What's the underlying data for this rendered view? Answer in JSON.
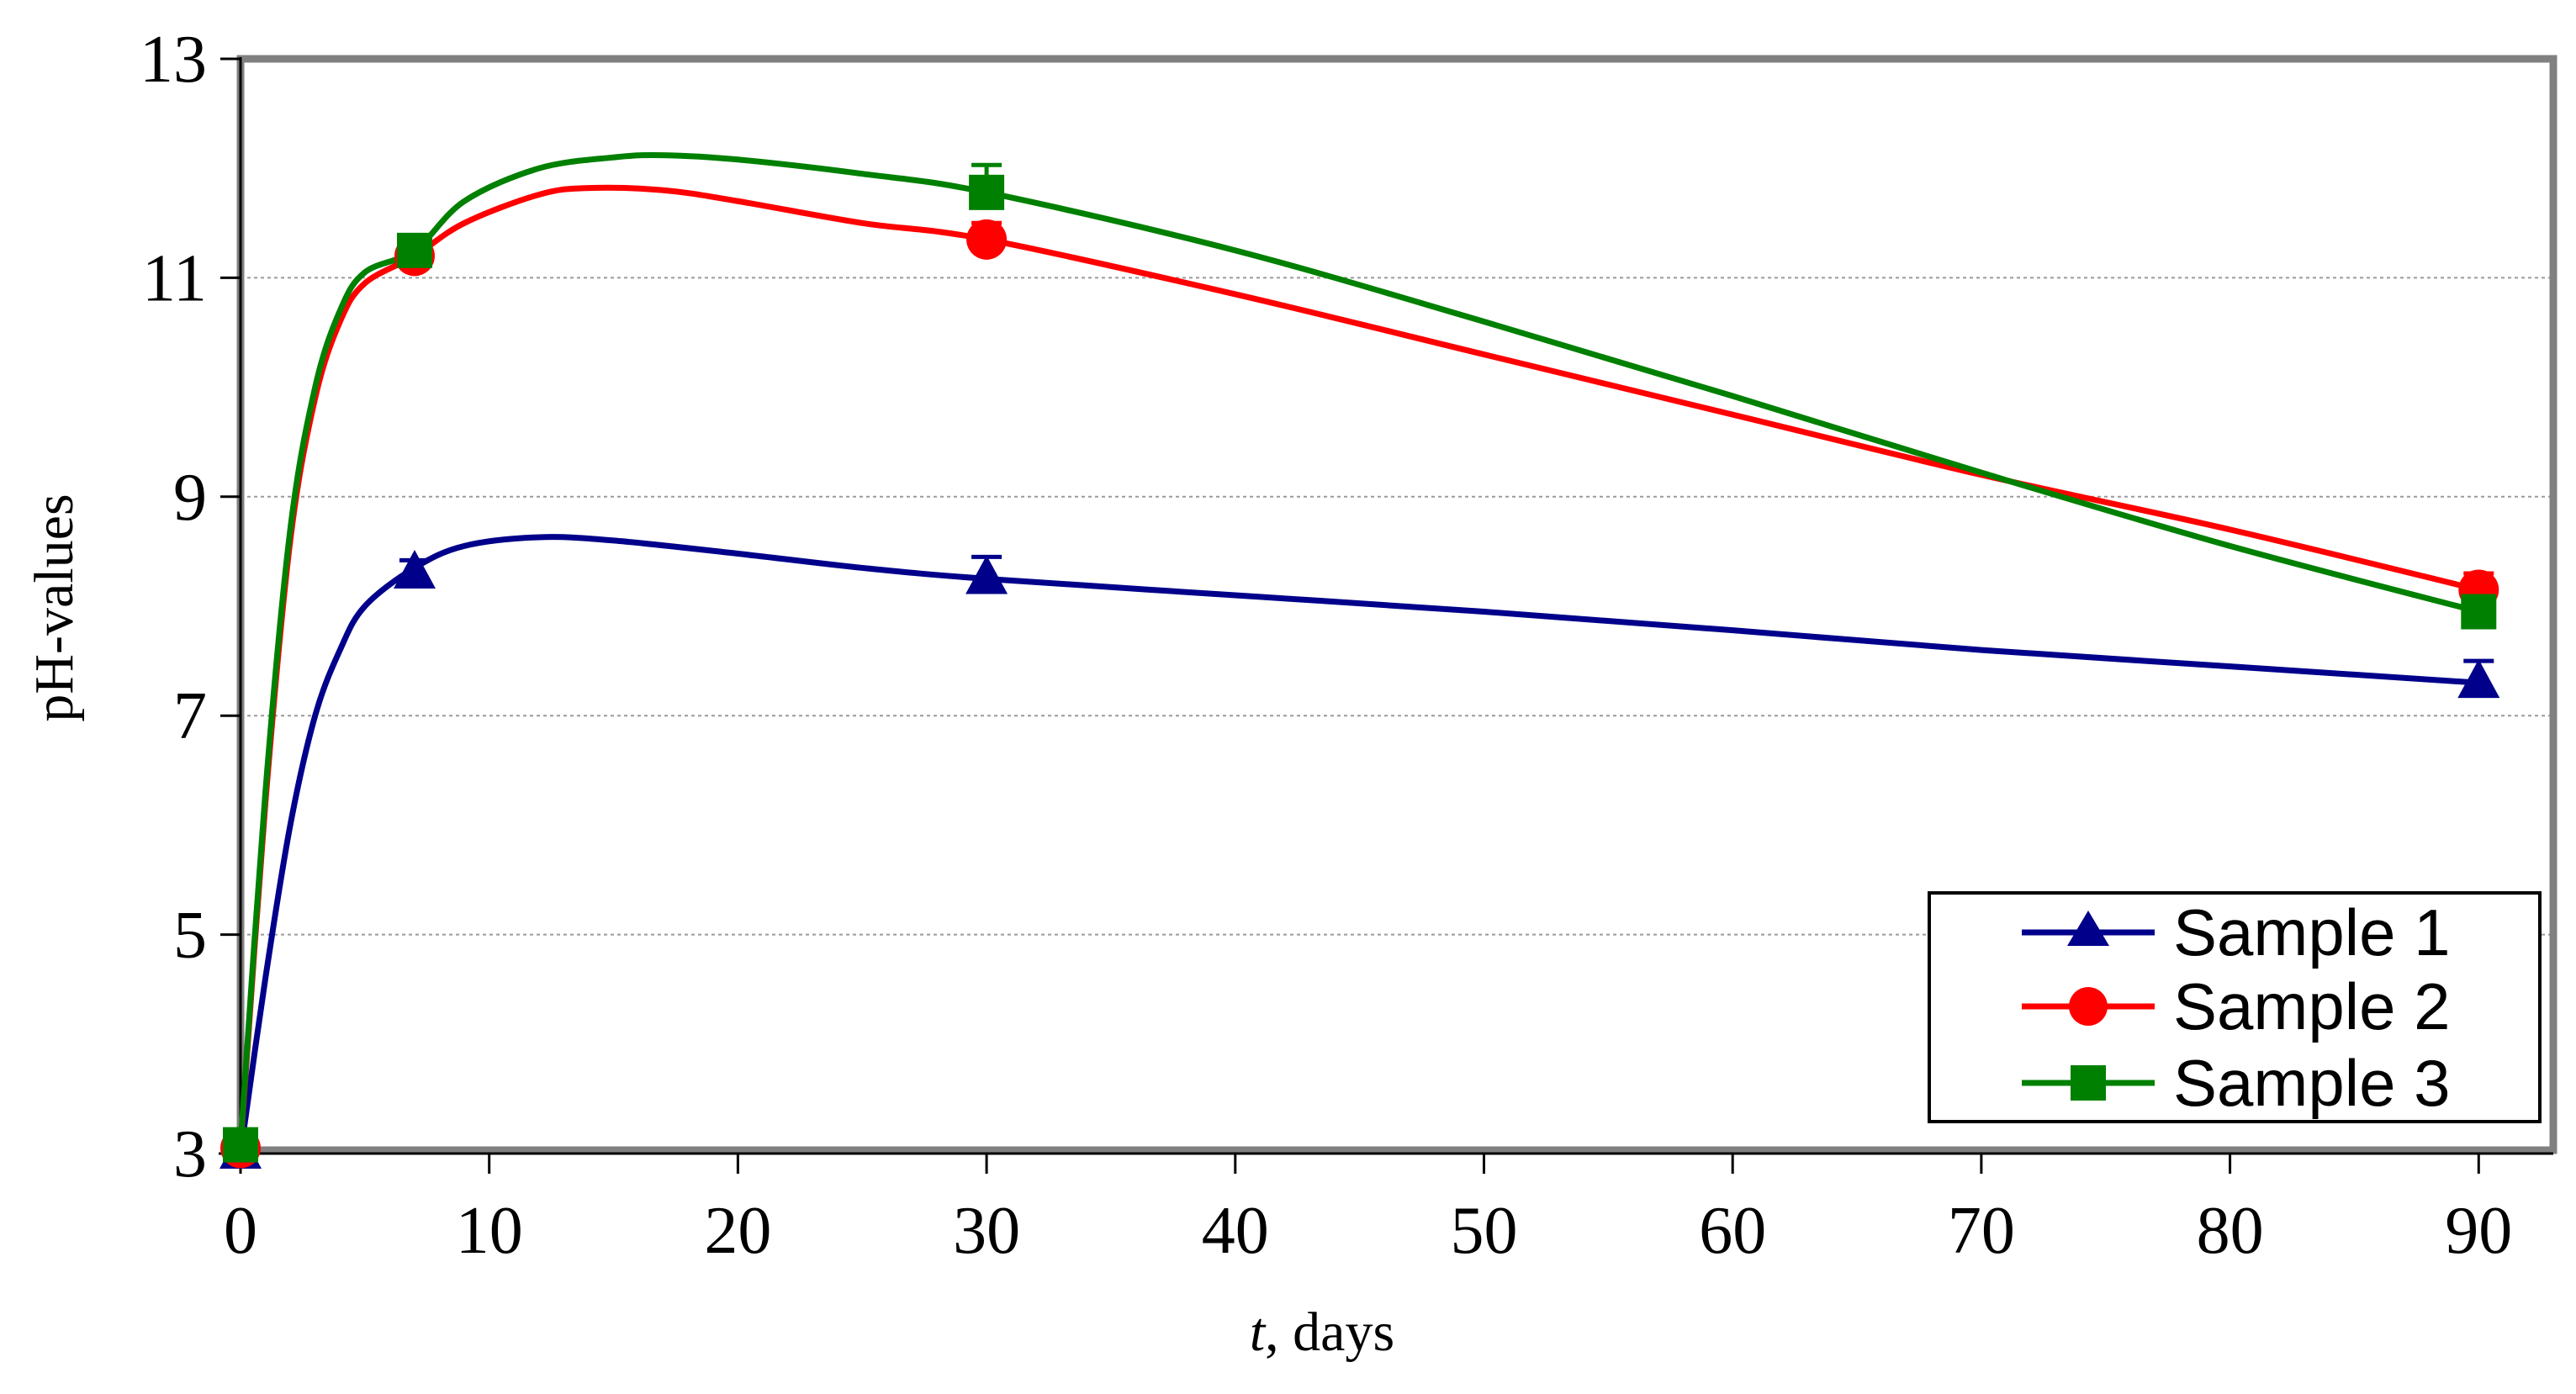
{
  "chart_data": {
    "type": "line",
    "title": "",
    "xlabel": {
      "italic": "t",
      "rest": ", days"
    },
    "ylabel": "pH-values",
    "xlim": [
      0,
      93
    ],
    "ylim": [
      3,
      13
    ],
    "xticks": [
      0,
      10,
      20,
      30,
      40,
      50,
      60,
      70,
      80,
      90
    ],
    "yticks": [
      3,
      5,
      7,
      9,
      11,
      13
    ],
    "grid": "horizontal dotted",
    "legend_position": "bottom-right",
    "x": [
      0,
      7,
      30,
      90
    ],
    "series": [
      {
        "name": "Sample 1",
        "marker": "triangle",
        "color": "#00008B",
        "values": [
          3.0,
          8.3,
          8.25,
          7.3
        ],
        "errors": [
          0.05,
          0.12,
          0.2,
          0.2
        ],
        "curve": [
          [
            0,
            3.0
          ],
          [
            1,
            4.6
          ],
          [
            2,
            6.0
          ],
          [
            3,
            7.0
          ],
          [
            4,
            7.6
          ],
          [
            5,
            8.0
          ],
          [
            7,
            8.35
          ],
          [
            9,
            8.55
          ],
          [
            12,
            8.63
          ],
          [
            15,
            8.6
          ],
          [
            20,
            8.48
          ],
          [
            25,
            8.35
          ],
          [
            30,
            8.25
          ],
          [
            40,
            8.1
          ],
          [
            50,
            7.95
          ],
          [
            60,
            7.78
          ],
          [
            70,
            7.6
          ],
          [
            80,
            7.45
          ],
          [
            90,
            7.3
          ]
        ]
      },
      {
        "name": "Sample 2",
        "marker": "circle",
        "color": "#FF0000",
        "values": [
          3.05,
          11.2,
          11.35,
          8.15
        ],
        "errors": [
          0.05,
          0.1,
          0.15,
          0.15
        ],
        "curve": [
          [
            0,
            3.05
          ],
          [
            1,
            6.2
          ],
          [
            2,
            8.6
          ],
          [
            3,
            9.9
          ],
          [
            4,
            10.6
          ],
          [
            5,
            10.95
          ],
          [
            7,
            11.2
          ],
          [
            9,
            11.5
          ],
          [
            12,
            11.76
          ],
          [
            14,
            11.82
          ],
          [
            17,
            11.8
          ],
          [
            20,
            11.7
          ],
          [
            25,
            11.5
          ],
          [
            30,
            11.35
          ],
          [
            40,
            10.85
          ],
          [
            50,
            10.3
          ],
          [
            60,
            9.75
          ],
          [
            70,
            9.2
          ],
          [
            80,
            8.7
          ],
          [
            90,
            8.15
          ]
        ]
      },
      {
        "name": "Sample 3",
        "marker": "square",
        "color": "#008000",
        "values": [
          3.08,
          11.25,
          11.78,
          7.95
        ],
        "errors": [
          0.05,
          0.1,
          0.25,
          0.3
        ],
        "curve": [
          [
            0,
            3.08
          ],
          [
            1,
            6.3
          ],
          [
            2,
            8.7
          ],
          [
            3,
            10.0
          ],
          [
            4,
            10.7
          ],
          [
            5,
            11.05
          ],
          [
            7,
            11.25
          ],
          [
            9,
            11.7
          ],
          [
            12,
            12.0
          ],
          [
            15,
            12.1
          ],
          [
            17,
            12.12
          ],
          [
            20,
            12.08
          ],
          [
            25,
            11.95
          ],
          [
            30,
            11.78
          ],
          [
            40,
            11.25
          ],
          [
            50,
            10.6
          ],
          [
            60,
            9.92
          ],
          [
            70,
            9.22
          ],
          [
            80,
            8.55
          ],
          [
            90,
            7.95
          ]
        ]
      }
    ]
  }
}
